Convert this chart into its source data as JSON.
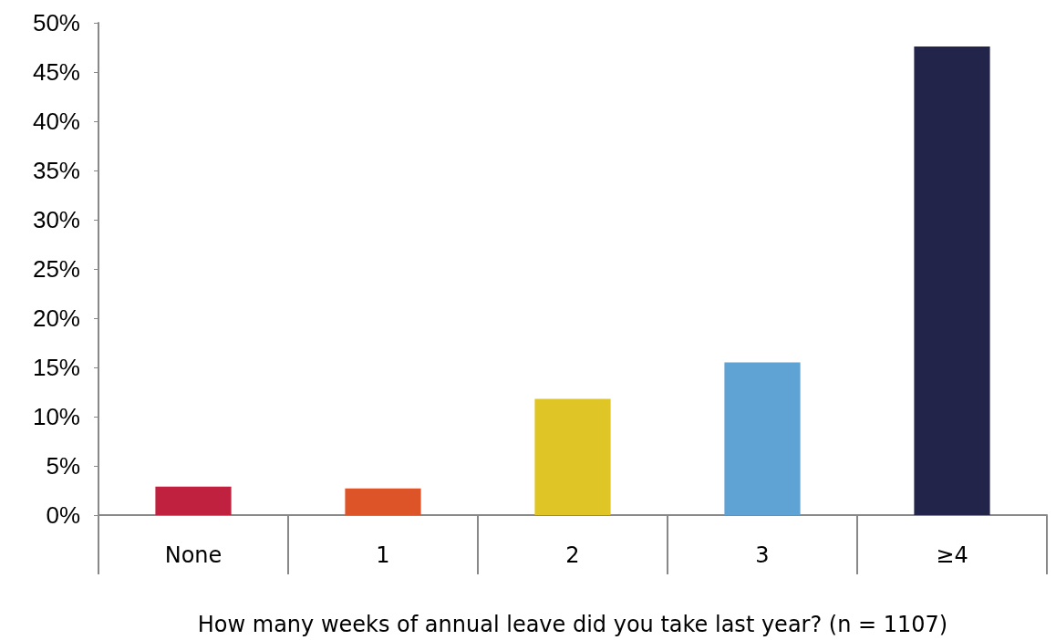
{
  "chart_data": {
    "type": "bar",
    "xlabel": "How many weeks of annual leave did you take last year? (n = 1107)",
    "categories": [
      "None",
      "1",
      "2",
      "3",
      "≥4"
    ],
    "values": [
      2.9,
      2.7,
      11.8,
      15.5,
      47.6
    ],
    "colors": [
      "#c0213e",
      "#dc5427",
      "#e0c526",
      "#5fa2d4",
      "#22244a"
    ],
    "ylim": [
      0,
      50
    ],
    "yticks": [
      {
        "value": 0,
        "label": "0%"
      },
      {
        "value": 5,
        "label": "5%"
      },
      {
        "value": 10,
        "label": "10%"
      },
      {
        "value": 15,
        "label": "15%"
      },
      {
        "value": 20,
        "label": "20%"
      },
      {
        "value": 25,
        "label": "25%"
      },
      {
        "value": 30,
        "label": "30%"
      },
      {
        "value": 35,
        "label": "35%"
      },
      {
        "value": 40,
        "label": "40%"
      },
      {
        "value": 45,
        "label": "45%"
      },
      {
        "value": 50,
        "label": "50%"
      }
    ],
    "grid": false
  }
}
